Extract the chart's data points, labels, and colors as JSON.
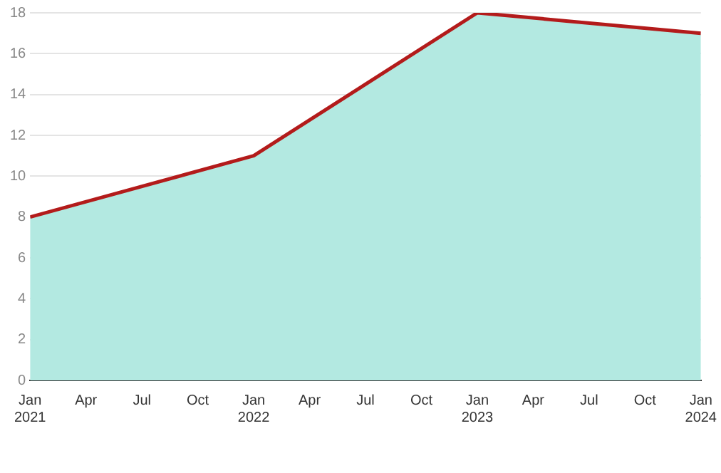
{
  "chart_data": {
    "type": "area",
    "x": [
      "2021-01",
      "2022-01",
      "2023-01",
      "2024-01"
    ],
    "series": [
      {
        "type": "area",
        "color": "#b3e9e1",
        "values": [
          8,
          11,
          18,
          17
        ]
      },
      {
        "type": "line",
        "color": "#b31b1b",
        "values": [
          8,
          11,
          18,
          17
        ]
      }
    ],
    "xlim": [
      "2021-01",
      "2024-01"
    ],
    "xticks": [
      {
        "value": "2021-01",
        "label": "Jan 2021"
      },
      {
        "value": "2021-04",
        "label": "Apr"
      },
      {
        "value": "2021-07",
        "label": "Jul"
      },
      {
        "value": "2021-10",
        "label": "Oct"
      },
      {
        "value": "2022-01",
        "label": "Jan 2022"
      },
      {
        "value": "2022-04",
        "label": "Apr"
      },
      {
        "value": "2022-07",
        "label": "Jul"
      },
      {
        "value": "2022-10",
        "label": "Oct"
      },
      {
        "value": "2023-01",
        "label": "Jan 2023"
      },
      {
        "value": "2023-04",
        "label": "Apr"
      },
      {
        "value": "2023-07",
        "label": "Jul"
      },
      {
        "value": "2023-10",
        "label": "Oct"
      },
      {
        "value": "2024-01",
        "label": "Jan 2024"
      }
    ],
    "ylim": [
      0,
      18
    ],
    "yticks": [
      0,
      2,
      4,
      6,
      8,
      10,
      12,
      14,
      16,
      18
    ],
    "grid": "y",
    "legend": false,
    "marker": "none",
    "line_style": "solid"
  }
}
